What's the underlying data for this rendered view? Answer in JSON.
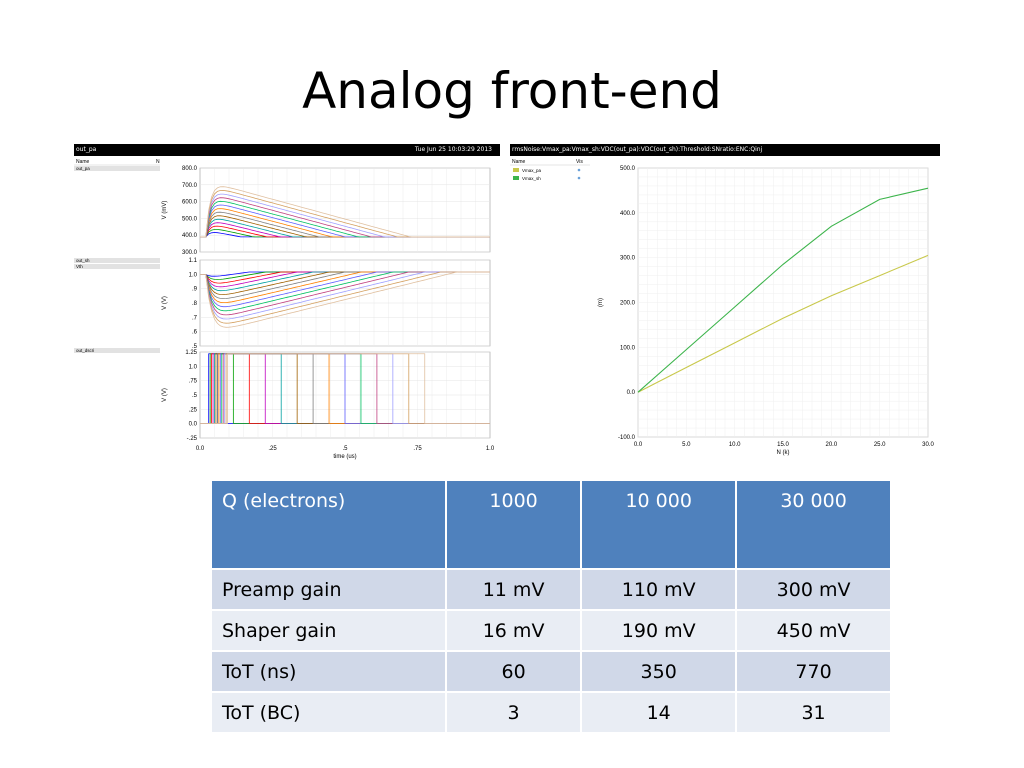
{
  "slide": {
    "title": "Analog front-end"
  },
  "left_scope": {
    "title": "out_pa",
    "date": "Tue Jun 25 10:03:29 2013",
    "name_header": "Name",
    "n_header": "N",
    "signals": [
      "out_pa",
      "out_sh",
      "Vth",
      "out_dscri"
    ],
    "panel1": {
      "ylabel": "V (mV)",
      "ticks": [
        "800.0",
        "700.0",
        "600.0",
        "500.0",
        "400.0",
        "300.0"
      ]
    },
    "panel2": {
      "ylabel": "V (V)",
      "ticks": [
        "1.1",
        "1.0",
        ".9",
        ".8",
        ".7",
        ".6",
        ".5"
      ]
    },
    "panel3": {
      "ylabel": "V (V)",
      "ticks": [
        "1.25",
        "1.0",
        ".75",
        ".5",
        ".25",
        "0.0",
        "-.25"
      ]
    },
    "xticks": [
      "0.0",
      ".25",
      ".5",
      ".75",
      "1.0"
    ],
    "xlabel": "time (us)"
  },
  "right_scope": {
    "title": "rmsNoise:Vmax_pa:Vmax_sh:VDC(out_pa):VDC(out_sh):Threshold:SNratio:ENC:Qinj",
    "name_header": "Name",
    "vis_header": "Vis",
    "series_colors": {
      "Vmax_pa": "#c8c84a",
      "Vmax_sh": "#3cb44b"
    }
  },
  "chart_data": {
    "type": "line",
    "title": "",
    "xlabel": "N (k)",
    "ylabel": "(m)",
    "xlim": [
      0,
      30
    ],
    "ylim": [
      -100,
      500
    ],
    "xticks": [
      "0.0",
      "5.0",
      "10.0",
      "15.0",
      "20.0",
      "25.0",
      "30.0"
    ],
    "yticks": [
      "500.0",
      "400.0",
      "300.0",
      "200.0",
      "100.0",
      "0.0",
      "-100.0"
    ],
    "series": [
      {
        "name": "Vmax_pa",
        "x": [
          0,
          5,
          10,
          15,
          20,
          25,
          30
        ],
        "values": [
          0,
          55,
          110,
          165,
          215,
          260,
          305
        ]
      },
      {
        "name": "Vmax_sh",
        "x": [
          0,
          5,
          10,
          15,
          20,
          25,
          30
        ],
        "values": [
          0,
          95,
          190,
          285,
          370,
          430,
          455
        ]
      }
    ]
  },
  "table": {
    "headers": [
      "Q (electrons)",
      "1000",
      "10 000",
      "30 000"
    ],
    "rows": [
      [
        "Preamp gain",
        "11 mV",
        "110 mV",
        "300 mV"
      ],
      [
        "Shaper gain",
        "16 mV",
        "190 mV",
        "450 mV"
      ],
      [
        "ToT  (ns)",
        "60",
        "350",
        "770"
      ],
      [
        "ToT (BC)",
        "3",
        "14",
        "31"
      ]
    ]
  }
}
